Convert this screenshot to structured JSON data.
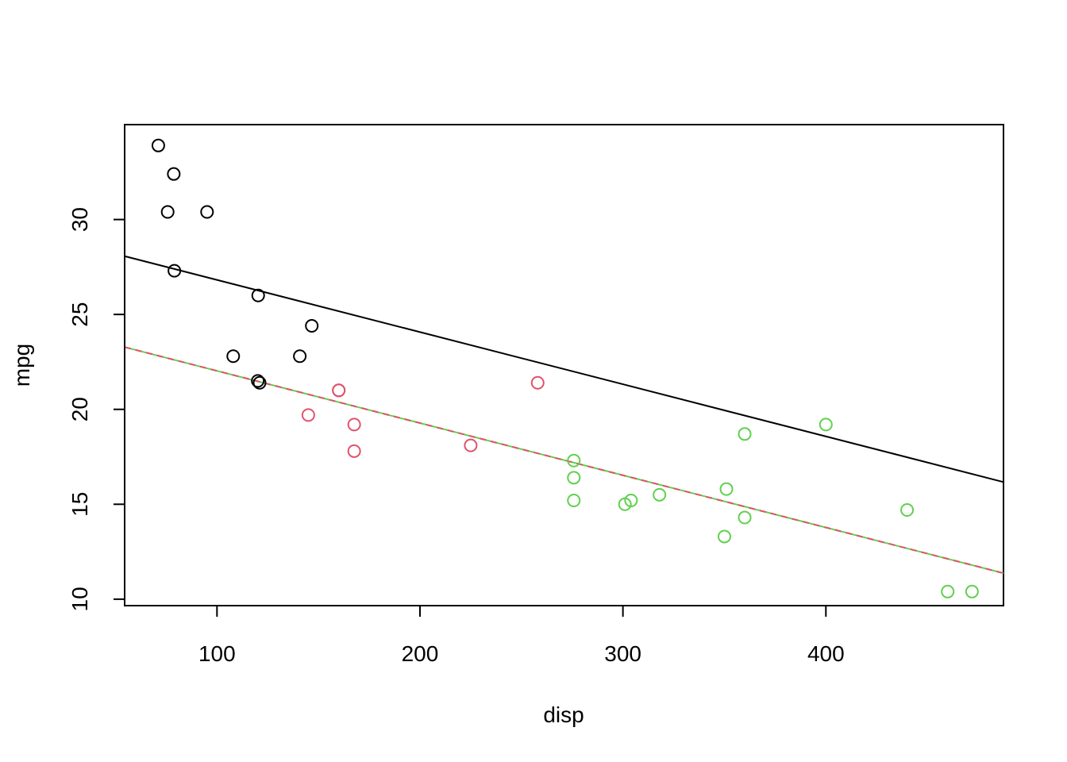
{
  "chart_data": {
    "type": "scatter",
    "xlabel": "disp",
    "ylabel": "mpg",
    "xlim": [
      54.5,
      487.5
    ],
    "ylim": [
      9.66,
      35.0
    ],
    "xticks": [
      100,
      200,
      300,
      400
    ],
    "yticks": [
      10,
      15,
      20,
      25,
      30
    ],
    "xtick_labels": [
      "100",
      "200",
      "300",
      "400"
    ],
    "ytick_labels": [
      "10",
      "15",
      "20",
      "25",
      "30"
    ],
    "grid": false,
    "legend": "none",
    "series": [
      {
        "color": "#000000",
        "points": [
          [
            71.1,
            33.9
          ],
          [
            78.7,
            32.4
          ],
          [
            75.7,
            30.4
          ],
          [
            95.1,
            30.4
          ],
          [
            79.0,
            27.3
          ],
          [
            120.3,
            26.0
          ],
          [
            146.7,
            24.4
          ],
          [
            108.0,
            22.8
          ],
          [
            140.8,
            22.8
          ],
          [
            121.0,
            21.4
          ],
          [
            120.1,
            21.5
          ]
        ]
      },
      {
        "color": "#DF536B",
        "points": [
          [
            160.0,
            21.0
          ],
          [
            160.0,
            21.0
          ],
          [
            258.0,
            21.4
          ],
          [
            145.0,
            19.7
          ],
          [
            167.6,
            19.2
          ],
          [
            167.6,
            17.8
          ],
          [
            225.0,
            18.1
          ]
        ]
      },
      {
        "color": "#61D04F",
        "points": [
          [
            275.8,
            17.3
          ],
          [
            275.8,
            16.4
          ],
          [
            275.8,
            15.2
          ],
          [
            304.0,
            15.2
          ],
          [
            301.0,
            15.0
          ],
          [
            318.0,
            15.5
          ],
          [
            360.0,
            18.7
          ],
          [
            400.0,
            19.2
          ],
          [
            351.0,
            15.8
          ],
          [
            360.0,
            14.3
          ],
          [
            350.0,
            13.3
          ],
          [
            440.0,
            14.7
          ],
          [
            460.0,
            10.4
          ],
          [
            472.0,
            10.4
          ]
        ]
      }
    ],
    "lines": [
      {
        "color": "#000000",
        "dash": false,
        "from": [
          54.5,
          28.07
        ],
        "to": [
          487.5,
          16.17
        ]
      },
      {
        "color": "#61D04F",
        "dash": false,
        "from": [
          54.5,
          23.28
        ],
        "to": [
          487.5,
          11.37
        ]
      },
      {
        "color": "#DF536B",
        "dash": true,
        "from": [
          54.5,
          23.28
        ],
        "to": [
          487.5,
          11.37
        ]
      }
    ]
  }
}
